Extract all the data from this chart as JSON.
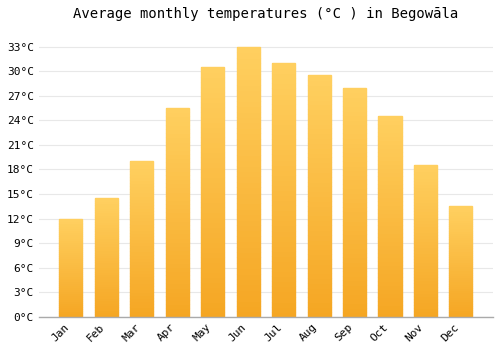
{
  "title": "Average monthly temperatures (°C ) in Begowāla",
  "months": [
    "Jan",
    "Feb",
    "Mar",
    "Apr",
    "May",
    "Jun",
    "Jul",
    "Aug",
    "Sep",
    "Oct",
    "Nov",
    "Dec"
  ],
  "temperatures": [
    12,
    14.5,
    19,
    25.5,
    30.5,
    33,
    31,
    29.5,
    28,
    24.5,
    18.5,
    13.5
  ],
  "bar_color_bottom": "#F5A623",
  "bar_color_top": "#FFD060",
  "background_color": "#FFFFFF",
  "grid_color": "#E8E8E8",
  "yticks": [
    0,
    3,
    6,
    9,
    12,
    15,
    18,
    21,
    24,
    27,
    30,
    33
  ],
  "ytick_labels": [
    "0°C",
    "3°C",
    "6°C",
    "9°C",
    "12°C",
    "15°C",
    "18°C",
    "21°C",
    "24°C",
    "27°C",
    "30°C",
    "33°C"
  ],
  "ylim": [
    0,
    35.5
  ],
  "title_fontsize": 10,
  "tick_fontsize": 8,
  "font_family": "monospace",
  "bar_width": 0.65
}
